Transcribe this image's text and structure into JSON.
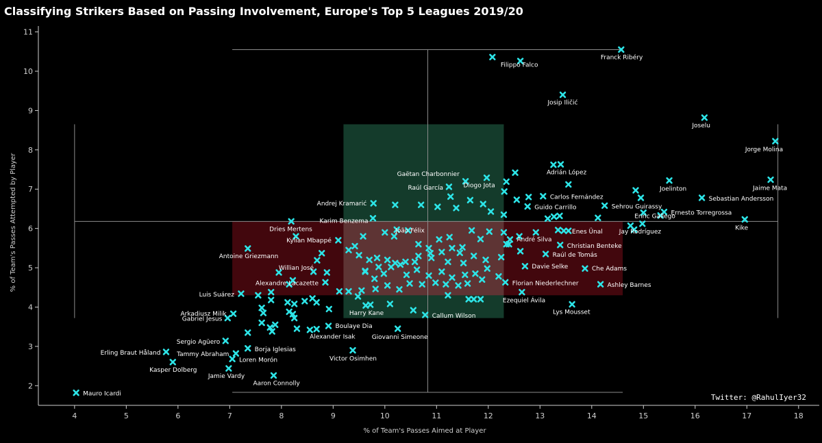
{
  "colors": {
    "background": "#000000",
    "marker": "#2de5e8",
    "text": "#ffffff",
    "box_green": "#1b4f3a",
    "box_red": "#5e0a12"
  },
  "chart_data": {
    "type": "scatter",
    "title": "Classifying Strikers Based on Passing Involvement, Europe's Top 5 Leagues 2019/20",
    "xlabel": "% of Team's Passes Aimed at Player",
    "ylabel": "% of Team's Passes Attempted by Player",
    "xlim": [
      3.3,
      18.4
    ],
    "ylim": [
      1.5,
      11.15
    ],
    "xticks": [
      "4",
      "5",
      "6",
      "7",
      "8",
      "9",
      "10",
      "11",
      "12",
      "13",
      "14",
      "15",
      "16",
      "17",
      "18"
    ],
    "yticks": [
      "2",
      "3",
      "4",
      "5",
      "6",
      "7",
      "8",
      "9",
      "10",
      "11"
    ],
    "credit": "Twitter: @RahulIyer32",
    "whiskers": [
      {
        "x1": 7.05,
        "x2": 14.6,
        "y1": 1.83,
        "y2": 10.55,
        "xc": 10.83,
        "yc": 10.55
      },
      {
        "x1": 4.0,
        "x2": 17.6,
        "y1": 3.72,
        "y2": 8.65,
        "yc": 6.18
      }
    ],
    "boxes": [
      {
        "color": "green",
        "x1": 9.2,
        "x2": 12.3,
        "y1": 3.72,
        "y2": 8.65
      },
      {
        "color": "red",
        "x1": 7.05,
        "x2": 14.6,
        "y1": 4.3,
        "y2": 6.18
      }
    ],
    "labeled_points": [
      {
        "name": "Franck Ribéry",
        "x": 14.57,
        "y": 10.55
      },
      {
        "name": "Filippo Falco",
        "x": 12.08,
        "y": 10.36
      },
      {
        "name": "",
        "x": 12.62,
        "y": 10.26
      },
      {
        "name": "Josip Iličić",
        "x": 13.44,
        "y": 9.4
      },
      {
        "name": "Joselu",
        "x": 16.18,
        "y": 8.82
      },
      {
        "name": "Jorge Molina",
        "x": 17.55,
        "y": 8.22
      },
      {
        "name": "Gaëtan Charbonnier",
        "x": 11.56,
        "y": 7.2
      },
      {
        "name": "Raúl García",
        "x": 11.24,
        "y": 7.06
      },
      {
        "name": "Adrián López",
        "x": 13.26,
        "y": 7.62
      },
      {
        "name": "Diogo Jota",
        "x": 11.97,
        "y": 7.29
      },
      {
        "name": "Carlos Fernández",
        "x": 13.06,
        "y": 6.82
      },
      {
        "name": "Guido Carrillo",
        "x": 12.76,
        "y": 6.56
      },
      {
        "name": "Joelinton",
        "x": 15.5,
        "y": 7.22
      },
      {
        "name": "Jaime Mata",
        "x": 17.46,
        "y": 7.24
      },
      {
        "name": "Sebastian Andersson",
        "x": 16.13,
        "y": 6.78
      },
      {
        "name": "Sehrou Guirassy",
        "x": 14.25,
        "y": 6.58
      },
      {
        "name": "Ernesto Torregrossa",
        "x": 15.4,
        "y": 6.42
      },
      {
        "name": "Enric Gallego",
        "x": 15.33,
        "y": 6.33
      },
      {
        "name": "Kike",
        "x": 16.96,
        "y": 6.23
      },
      {
        "name": "Andrej Kramarić",
        "x": 9.78,
        "y": 6.64
      },
      {
        "name": "Karim Benzema",
        "x": 9.77,
        "y": 6.26
      },
      {
        "name": "Dries Mertens",
        "x": 8.19,
        "y": 6.18
      },
      {
        "name": "João Félix",
        "x": 10.23,
        "y": 5.97
      },
      {
        "name": "Enes Ünal",
        "x": 13.46,
        "y": 5.94
      },
      {
        "name": "Jay Rodríguez",
        "x": 14.98,
        "y": 6.12
      },
      {
        "name": "Kylian Mbappé",
        "x": 9.1,
        "y": 5.7
      },
      {
        "name": "André Silva",
        "x": 12.42,
        "y": 5.72
      },
      {
        "name": "Christian Benteke",
        "x": 13.39,
        "y": 5.58
      },
      {
        "name": "Antoine Griezmann",
        "x": 7.35,
        "y": 5.49
      },
      {
        "name": "Raúl de Tomás",
        "x": 13.11,
        "y": 5.35
      },
      {
        "name": "Willian José",
        "x": 8.69,
        "y": 5.19
      },
      {
        "name": "Davie Selke",
        "x": 12.71,
        "y": 5.04
      },
      {
        "name": "Che Adams",
        "x": 13.87,
        "y": 4.98
      },
      {
        "name": "Alexandre Lacazette",
        "x": 8.85,
        "y": 4.63
      },
      {
        "name": "Florian Niederlechner",
        "x": 12.33,
        "y": 4.63
      },
      {
        "name": "Ashley Barnes",
        "x": 14.17,
        "y": 4.58
      },
      {
        "name": "Luis Suárez",
        "x": 7.22,
        "y": 4.34
      },
      {
        "name": "Ezequiel Ávila",
        "x": 12.65,
        "y": 4.38
      },
      {
        "name": "Arkadiusz Milik",
        "x": 7.07,
        "y": 3.83
      },
      {
        "name": "Harry Kane",
        "x": 9.63,
        "y": 4.04
      },
      {
        "name": "Callum Wilson",
        "x": 10.78,
        "y": 3.8
      },
      {
        "name": "Lys Mousset",
        "x": 13.62,
        "y": 4.07
      },
      {
        "name": "Gabriel Jesus",
        "x": 6.96,
        "y": 3.72
      },
      {
        "name": "Boulaye Dia",
        "x": 8.91,
        "y": 3.52
      },
      {
        "name": "Giovanni Simeone",
        "x": 10.25,
        "y": 3.45
      },
      {
        "name": "Alexander Isak",
        "x": 8.68,
        "y": 3.44
      },
      {
        "name": "Sergio Agüero",
        "x": 6.92,
        "y": 3.14
      },
      {
        "name": "Borja Iglesias",
        "x": 7.35,
        "y": 2.95
      },
      {
        "name": "Erling Braut Håland",
        "x": 5.77,
        "y": 2.86
      },
      {
        "name": "Tammy Abraham",
        "x": 7.12,
        "y": 2.82
      },
      {
        "name": "Victor Osimhen",
        "x": 9.38,
        "y": 2.9
      },
      {
        "name": "Loren Morón",
        "x": 7.05,
        "y": 2.68
      },
      {
        "name": "Kasper Dolberg",
        "x": 5.9,
        "y": 2.6
      },
      {
        "name": "Jamie Vardy",
        "x": 6.98,
        "y": 2.44
      },
      {
        "name": "Aaron Connolly",
        "x": 7.85,
        "y": 2.26
      },
      {
        "name": "Mauro Icardi",
        "x": 4.03,
        "y": 1.82
      }
    ],
    "other_points": [
      [
        12.52,
        7.42
      ],
      [
        12.35,
        7.19
      ],
      [
        12.31,
        6.94
      ],
      [
        11.65,
        6.72
      ],
      [
        11.27,
        6.81
      ],
      [
        11.9,
        6.62
      ],
      [
        12.05,
        6.43
      ],
      [
        12.3,
        6.35
      ],
      [
        12.55,
        6.73
      ],
      [
        12.78,
        6.8
      ],
      [
        11.38,
        6.52
      ],
      [
        11.02,
        6.55
      ],
      [
        10.7,
        6.6
      ],
      [
        10.2,
        6.6
      ],
      [
        13.4,
        7.63
      ],
      [
        13.55,
        7.12
      ],
      [
        13.27,
        6.3
      ],
      [
        13.38,
        6.32
      ],
      [
        14.12,
        6.27
      ],
      [
        14.85,
        6.97
      ],
      [
        14.95,
        6.78
      ],
      [
        15.0,
        6.4
      ],
      [
        14.82,
        5.97
      ],
      [
        14.75,
        6.07
      ],
      [
        13.15,
        6.25
      ],
      [
        13.55,
        5.94
      ],
      [
        13.35,
        5.96
      ],
      [
        12.92,
        5.9
      ],
      [
        12.6,
        5.8
      ],
      [
        12.3,
        5.9
      ],
      [
        12.02,
        5.92
      ],
      [
        11.68,
        5.95
      ],
      [
        11.25,
        5.78
      ],
      [
        11.85,
        5.73
      ],
      [
        12.4,
        5.6
      ],
      [
        12.62,
        5.42
      ],
      [
        11.5,
        5.52
      ],
      [
        11.3,
        5.5
      ],
      [
        11.1,
        5.4
      ],
      [
        10.88,
        5.37
      ],
      [
        10.65,
        5.3
      ],
      [
        10.4,
        5.15
      ],
      [
        10.2,
        5.12
      ],
      [
        10.05,
        5.2
      ],
      [
        9.85,
        5.25
      ],
      [
        9.7,
        5.2
      ],
      [
        9.5,
        5.32
      ],
      [
        9.42,
        5.55
      ],
      [
        9.3,
        5.45
      ],
      [
        9.58,
        5.8
      ],
      [
        10.0,
        5.9
      ],
      [
        10.18,
        5.8
      ],
      [
        10.45,
        5.95
      ],
      [
        10.65,
        5.6
      ],
      [
        10.85,
        5.5
      ],
      [
        11.05,
        5.72
      ],
      [
        11.45,
        5.38
      ],
      [
        11.72,
        5.3
      ],
      [
        11.95,
        5.2
      ],
      [
        11.52,
        5.12
      ],
      [
        11.22,
        5.15
      ],
      [
        10.9,
        5.25
      ],
      [
        10.58,
        5.15
      ],
      [
        10.3,
        5.08
      ],
      [
        10.12,
        5.02
      ],
      [
        9.88,
        5.02
      ],
      [
        9.62,
        4.9
      ],
      [
        9.8,
        4.72
      ],
      [
        9.98,
        4.85
      ],
      [
        10.42,
        4.82
      ],
      [
        10.62,
        4.95
      ],
      [
        10.85,
        4.8
      ],
      [
        11.1,
        4.9
      ],
      [
        11.3,
        4.75
      ],
      [
        11.55,
        4.82
      ],
      [
        11.75,
        4.85
      ],
      [
        11.98,
        4.98
      ],
      [
        12.2,
        4.78
      ],
      [
        11.88,
        4.7
      ],
      [
        11.6,
        4.6
      ],
      [
        11.42,
        4.55
      ],
      [
        11.18,
        4.58
      ],
      [
        10.98,
        4.62
      ],
      [
        10.72,
        4.58
      ],
      [
        10.48,
        4.6
      ],
      [
        10.28,
        4.45
      ],
      [
        10.05,
        4.55
      ],
      [
        9.82,
        4.46
      ],
      [
        9.55,
        4.42
      ],
      [
        9.3,
        4.4
      ],
      [
        9.12,
        4.4
      ],
      [
        9.48,
        4.27
      ],
      [
        9.72,
        4.06
      ],
      [
        10.1,
        4.08
      ],
      [
        10.55,
        3.92
      ],
      [
        11.62,
        4.2
      ],
      [
        11.85,
        4.2
      ],
      [
        11.72,
        4.2
      ],
      [
        11.22,
        4.3
      ],
      [
        8.28,
        5.8
      ],
      [
        8.78,
        5.37
      ],
      [
        8.88,
        4.88
      ],
      [
        8.62,
        4.9
      ],
      [
        8.22,
        4.68
      ],
      [
        7.95,
        4.88
      ],
      [
        7.55,
        4.3
      ],
      [
        7.8,
        4.38
      ],
      [
        7.8,
        4.18
      ],
      [
        7.62,
        3.98
      ],
      [
        7.62,
        3.6
      ],
      [
        7.65,
        3.85
      ],
      [
        7.78,
        3.48
      ],
      [
        7.82,
        3.38
      ],
      [
        7.88,
        3.55
      ],
      [
        8.12,
        4.12
      ],
      [
        8.25,
        4.08
      ],
      [
        8.45,
        4.15
      ],
      [
        8.6,
        4.22
      ],
      [
        8.15,
        3.88
      ],
      [
        8.22,
        3.82
      ],
      [
        8.25,
        3.72
      ],
      [
        8.3,
        3.45
      ],
      [
        8.55,
        3.42
      ],
      [
        8.68,
        4.12
      ],
      [
        8.92,
        3.95
      ],
      [
        7.35,
        3.35
      ],
      [
        12.35,
        5.6
      ],
      [
        12.25,
        5.27
      ],
      [
        9.62,
        4.92
      ],
      [
        8.15,
        4.58
      ]
    ]
  }
}
